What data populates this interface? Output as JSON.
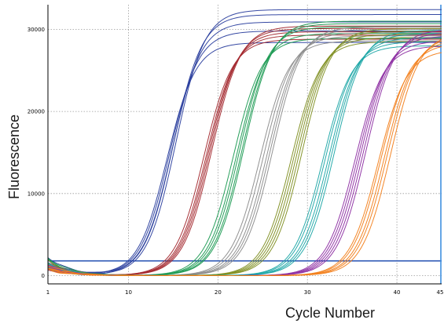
{
  "chart_data": {
    "type": "line",
    "title": "",
    "xlabel": "Cycle Number",
    "ylabel": "Fluorescence",
    "xlim": [
      1,
      45
    ],
    "ylim": [
      -1000,
      33000
    ],
    "grid": true,
    "legend": "none",
    "x_ticks": [
      1,
      10,
      20,
      30,
      40,
      45
    ],
    "x_tick_labels": [
      "1",
      "10",
      "20",
      "30",
      "40",
      "45"
    ],
    "y_ticks": [
      0,
      10000,
      20000,
      30000
    ],
    "y_tick_labels": [
      "0",
      "10000",
      "20000",
      "30000"
    ],
    "threshold": {
      "value": 1800,
      "color": "#2e57b5"
    },
    "end_marker": {
      "x": 45,
      "color": "#3f8fe0"
    },
    "series_groups": [
      {
        "color": "#2b3f9e",
        "ct": [
          14.3,
          14.6,
          14.9,
          15.0,
          15.3
        ],
        "plateau": [
          28400,
          29800,
          30900,
          31800,
          32400
        ],
        "baseline": [
          1200,
          1900,
          2300,
          900,
          1500
        ]
      },
      {
        "color": "#a3282e",
        "ct": [
          18.4,
          18.7,
          18.9,
          19.1,
          19.3
        ],
        "plateau": [
          28800,
          29300,
          29700,
          30100,
          30400
        ],
        "baseline": [
          800,
          1300,
          1700,
          1100,
          1500
        ]
      },
      {
        "color": "#1b9a52",
        "ct": [
          21.7,
          22.1,
          22.4,
          22.7,
          22.9
        ],
        "plateau": [
          28900,
          29500,
          30300,
          30700,
          31000
        ],
        "baseline": [
          2200,
          1600,
          1000,
          1900,
          1300
        ]
      },
      {
        "color": "#8c8c8c",
        "ct": [
          24.7,
          25.1,
          25.5,
          25.8,
          26.1
        ],
        "plateau": [
          28600,
          29200,
          29600,
          30000,
          30300
        ],
        "baseline": [
          1100,
          900,
          1500,
          1200,
          1000
        ]
      },
      {
        "color": "#7f8f22",
        "ct": [
          28.2,
          28.5,
          28.8,
          29.1,
          29.4
        ],
        "plateau": [
          28500,
          29000,
          29400,
          29800,
          30100
        ],
        "baseline": [
          1000,
          1400,
          1800,
          1200,
          800
        ]
      },
      {
        "color": "#1ea6a6",
        "ct": [
          31.7,
          32.0,
          32.4,
          32.7,
          33.0
        ],
        "plateau": [
          28000,
          28500,
          29000,
          29500,
          29900
        ],
        "baseline": [
          900,
          1300,
          1600,
          1200,
          1000
        ]
      },
      {
        "color": "#8e2fa3",
        "ct": [
          35.3,
          35.6,
          35.9,
          36.2,
          36.5
        ],
        "plateau": [
          28000,
          28600,
          29200,
          29600,
          30000
        ],
        "baseline": [
          1000,
          1200,
          800,
          1400,
          1100
        ]
      },
      {
        "color": "#f27f1b",
        "ct": [
          37.9,
          38.2,
          38.6,
          38.9,
          39.3
        ],
        "plateau": [
          27500,
          28300,
          28800,
          29200,
          29600
        ],
        "baseline": [
          700,
          1000,
          1300,
          900,
          800
        ]
      }
    ]
  }
}
